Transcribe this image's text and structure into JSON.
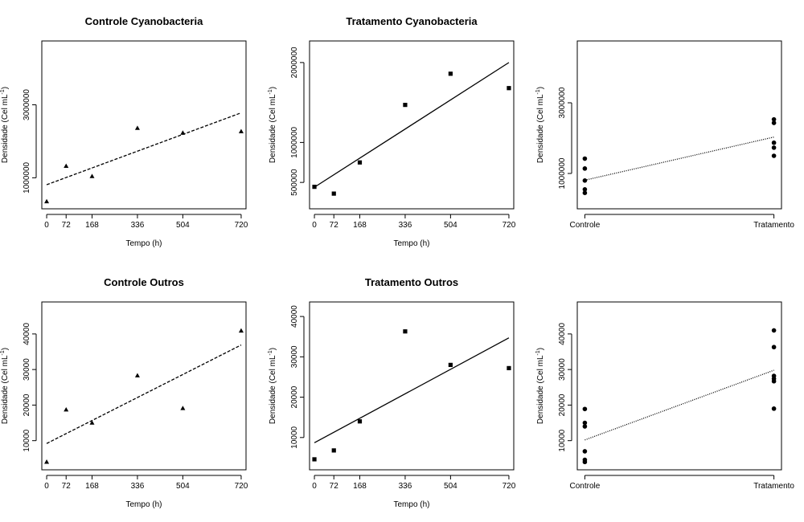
{
  "colors": {
    "ink": "#000000",
    "background": "#ffffff"
  },
  "chart_data": [
    {
      "type": "scatter",
      "title": "Controle Cyanobacteria",
      "xlabel": "Tempo (h)",
      "ylabel_main": "Densidade (Cel mL",
      "ylabel_sup": "-1",
      "ylabel_close": ")",
      "marker": "triangle",
      "fit_style": "dashed",
      "x_ticks": [
        0,
        72,
        168,
        336,
        504,
        720
      ],
      "x_tick_labels": [
        "0",
        "72",
        "168",
        "336",
        "504",
        "720"
      ],
      "xlim": [
        -18,
        738
      ],
      "y_ticks": [
        1000000,
        3000000
      ],
      "y_tick_labels": [
        "1000000",
        "3000000"
      ],
      "ylim": [
        150000,
        4750000
      ],
      "points": [
        [
          0,
          350000
        ],
        [
          72,
          1320000
        ],
        [
          168,
          1040000
        ],
        [
          336,
          2360000
        ],
        [
          504,
          2230000
        ],
        [
          720,
          2270000
        ]
      ],
      "fit": {
        "x": [
          0,
          720
        ],
        "y": [
          810000,
          2780000
        ]
      }
    },
    {
      "type": "scatter",
      "title": "Tratamento Cyanobacteria",
      "xlabel": "Tempo (h)",
      "ylabel_main": "Densidade (Cel mL",
      "ylabel_sup": "-1",
      "ylabel_close": ")",
      "marker": "square",
      "fit_style": "solid",
      "x_ticks": [
        0,
        72,
        168,
        336,
        504,
        720
      ],
      "x_tick_labels": [
        "0",
        "72",
        "168",
        "336",
        "504",
        "720"
      ],
      "xlim": [
        -18,
        738
      ],
      "y_ticks": [
        500000,
        1000000,
        2000000
      ],
      "y_tick_labels": [
        "500000",
        "1000000",
        "2000000"
      ],
      "ylim": [
        170000,
        2270000
      ],
      "points": [
        [
          0,
          445000
        ],
        [
          72,
          360000
        ],
        [
          168,
          750000
        ],
        [
          336,
          1470000
        ],
        [
          504,
          1860000
        ],
        [
          720,
          1680000
        ]
      ],
      "fit": {
        "x": [
          0,
          720
        ],
        "y": [
          440000,
          2000000
        ]
      }
    },
    {
      "type": "scatter",
      "title": "",
      "xlabel": "",
      "ylabel_main": "Densidade (Cel mL",
      "ylabel_sup": "-1",
      "ylabel_close": ")",
      "marker": "circle",
      "fit_style": "dotted",
      "x_ticks": [
        0,
        1
      ],
      "x_tick_labels": [
        "Controle",
        "Tratamento"
      ],
      "xlim": [
        -0.04,
        1.04
      ],
      "y_ticks": [
        1000000,
        3000000
      ],
      "y_tick_labels": [
        "1000000",
        "3000000"
      ],
      "ylim": [
        0,
        4750000
      ],
      "points": [
        [
          0,
          1420000
        ],
        [
          0,
          1140000
        ],
        [
          0,
          800000
        ],
        [
          0,
          550000
        ],
        [
          0,
          450000
        ],
        [
          1,
          2530000
        ],
        [
          1,
          2430000
        ],
        [
          1,
          1870000
        ],
        [
          1,
          1730000
        ],
        [
          1,
          1500000
        ]
      ],
      "fit": {
        "x": [
          0,
          1
        ],
        "y": [
          810000,
          2030000
        ]
      }
    },
    {
      "type": "scatter",
      "title": "Controle Outros",
      "xlabel": "Tempo (h)",
      "ylabel_main": "Densidade (Cel mL",
      "ylabel_sup": "-1",
      "ylabel_close": ")",
      "marker": "triangle",
      "fit_style": "dashed",
      "x_ticks": [
        0,
        72,
        168,
        336,
        504,
        720
      ],
      "x_tick_labels": [
        "0",
        "72",
        "168",
        "336",
        "504",
        "720"
      ],
      "xlim": [
        -18,
        738
      ],
      "y_ticks": [
        10000,
        20000,
        30000,
        40000
      ],
      "y_tick_labels": [
        "10000",
        "20000",
        "30000",
        "40000"
      ],
      "ylim": [
        1800,
        49000
      ],
      "points": [
        [
          0,
          4000
        ],
        [
          72,
          18700
        ],
        [
          168,
          15000
        ],
        [
          336,
          28300
        ],
        [
          504,
          19100
        ],
        [
          720,
          40900
        ]
      ],
      "fit": {
        "x": [
          0,
          720
        ],
        "y": [
          9200,
          36900
        ]
      }
    },
    {
      "type": "scatter",
      "title": "Tratamento Outros",
      "xlabel": "Tempo (h)",
      "ylabel_main": "Densidade (Cel mL",
      "ylabel_sup": "-1",
      "ylabel_close": ")",
      "marker": "square",
      "fit_style": "solid",
      "x_ticks": [
        0,
        72,
        168,
        336,
        504,
        720
      ],
      "x_tick_labels": [
        "0",
        "72",
        "168",
        "336",
        "504",
        "720"
      ],
      "xlim": [
        -18,
        738
      ],
      "y_ticks": [
        10000,
        20000,
        30000,
        40000
      ],
      "y_tick_labels": [
        "10000",
        "20000",
        "30000",
        "40000"
      ],
      "ylim": [
        2000,
        43600
      ],
      "points": [
        [
          0,
          4600
        ],
        [
          72,
          6800
        ],
        [
          168,
          14000
        ],
        [
          336,
          36300
        ],
        [
          504,
          28000
        ],
        [
          720,
          27200
        ]
      ],
      "fit": {
        "x": [
          0,
          720
        ],
        "y": [
          8700,
          34700
        ]
      }
    },
    {
      "type": "scatter",
      "title": "",
      "xlabel": "",
      "ylabel_main": "Densidade (Cel mL",
      "ylabel_sup": "-1",
      "ylabel_close": ")",
      "marker": "circle",
      "fit_style": "dotted",
      "x_ticks": [
        0,
        1
      ],
      "x_tick_labels": [
        "Controle",
        "Tratamento"
      ],
      "xlim": [
        -0.04,
        1.04
      ],
      "y_ticks": [
        10000,
        20000,
        30000,
        40000
      ],
      "y_tick_labels": [
        "10000",
        "20000",
        "30000",
        "40000"
      ],
      "ylim": [
        1800,
        49000
      ],
      "points": [
        [
          0,
          18900
        ],
        [
          0,
          15000
        ],
        [
          0,
          14000
        ],
        [
          0,
          7000
        ],
        [
          0,
          4600
        ],
        [
          0,
          4000
        ],
        [
          1,
          41000
        ],
        [
          1,
          36300
        ],
        [
          1,
          28200
        ],
        [
          1,
          27400
        ],
        [
          1,
          26700
        ],
        [
          1,
          19000
        ]
      ],
      "fit": {
        "x": [
          0,
          1
        ],
        "y": [
          10200,
          29800
        ]
      }
    }
  ]
}
